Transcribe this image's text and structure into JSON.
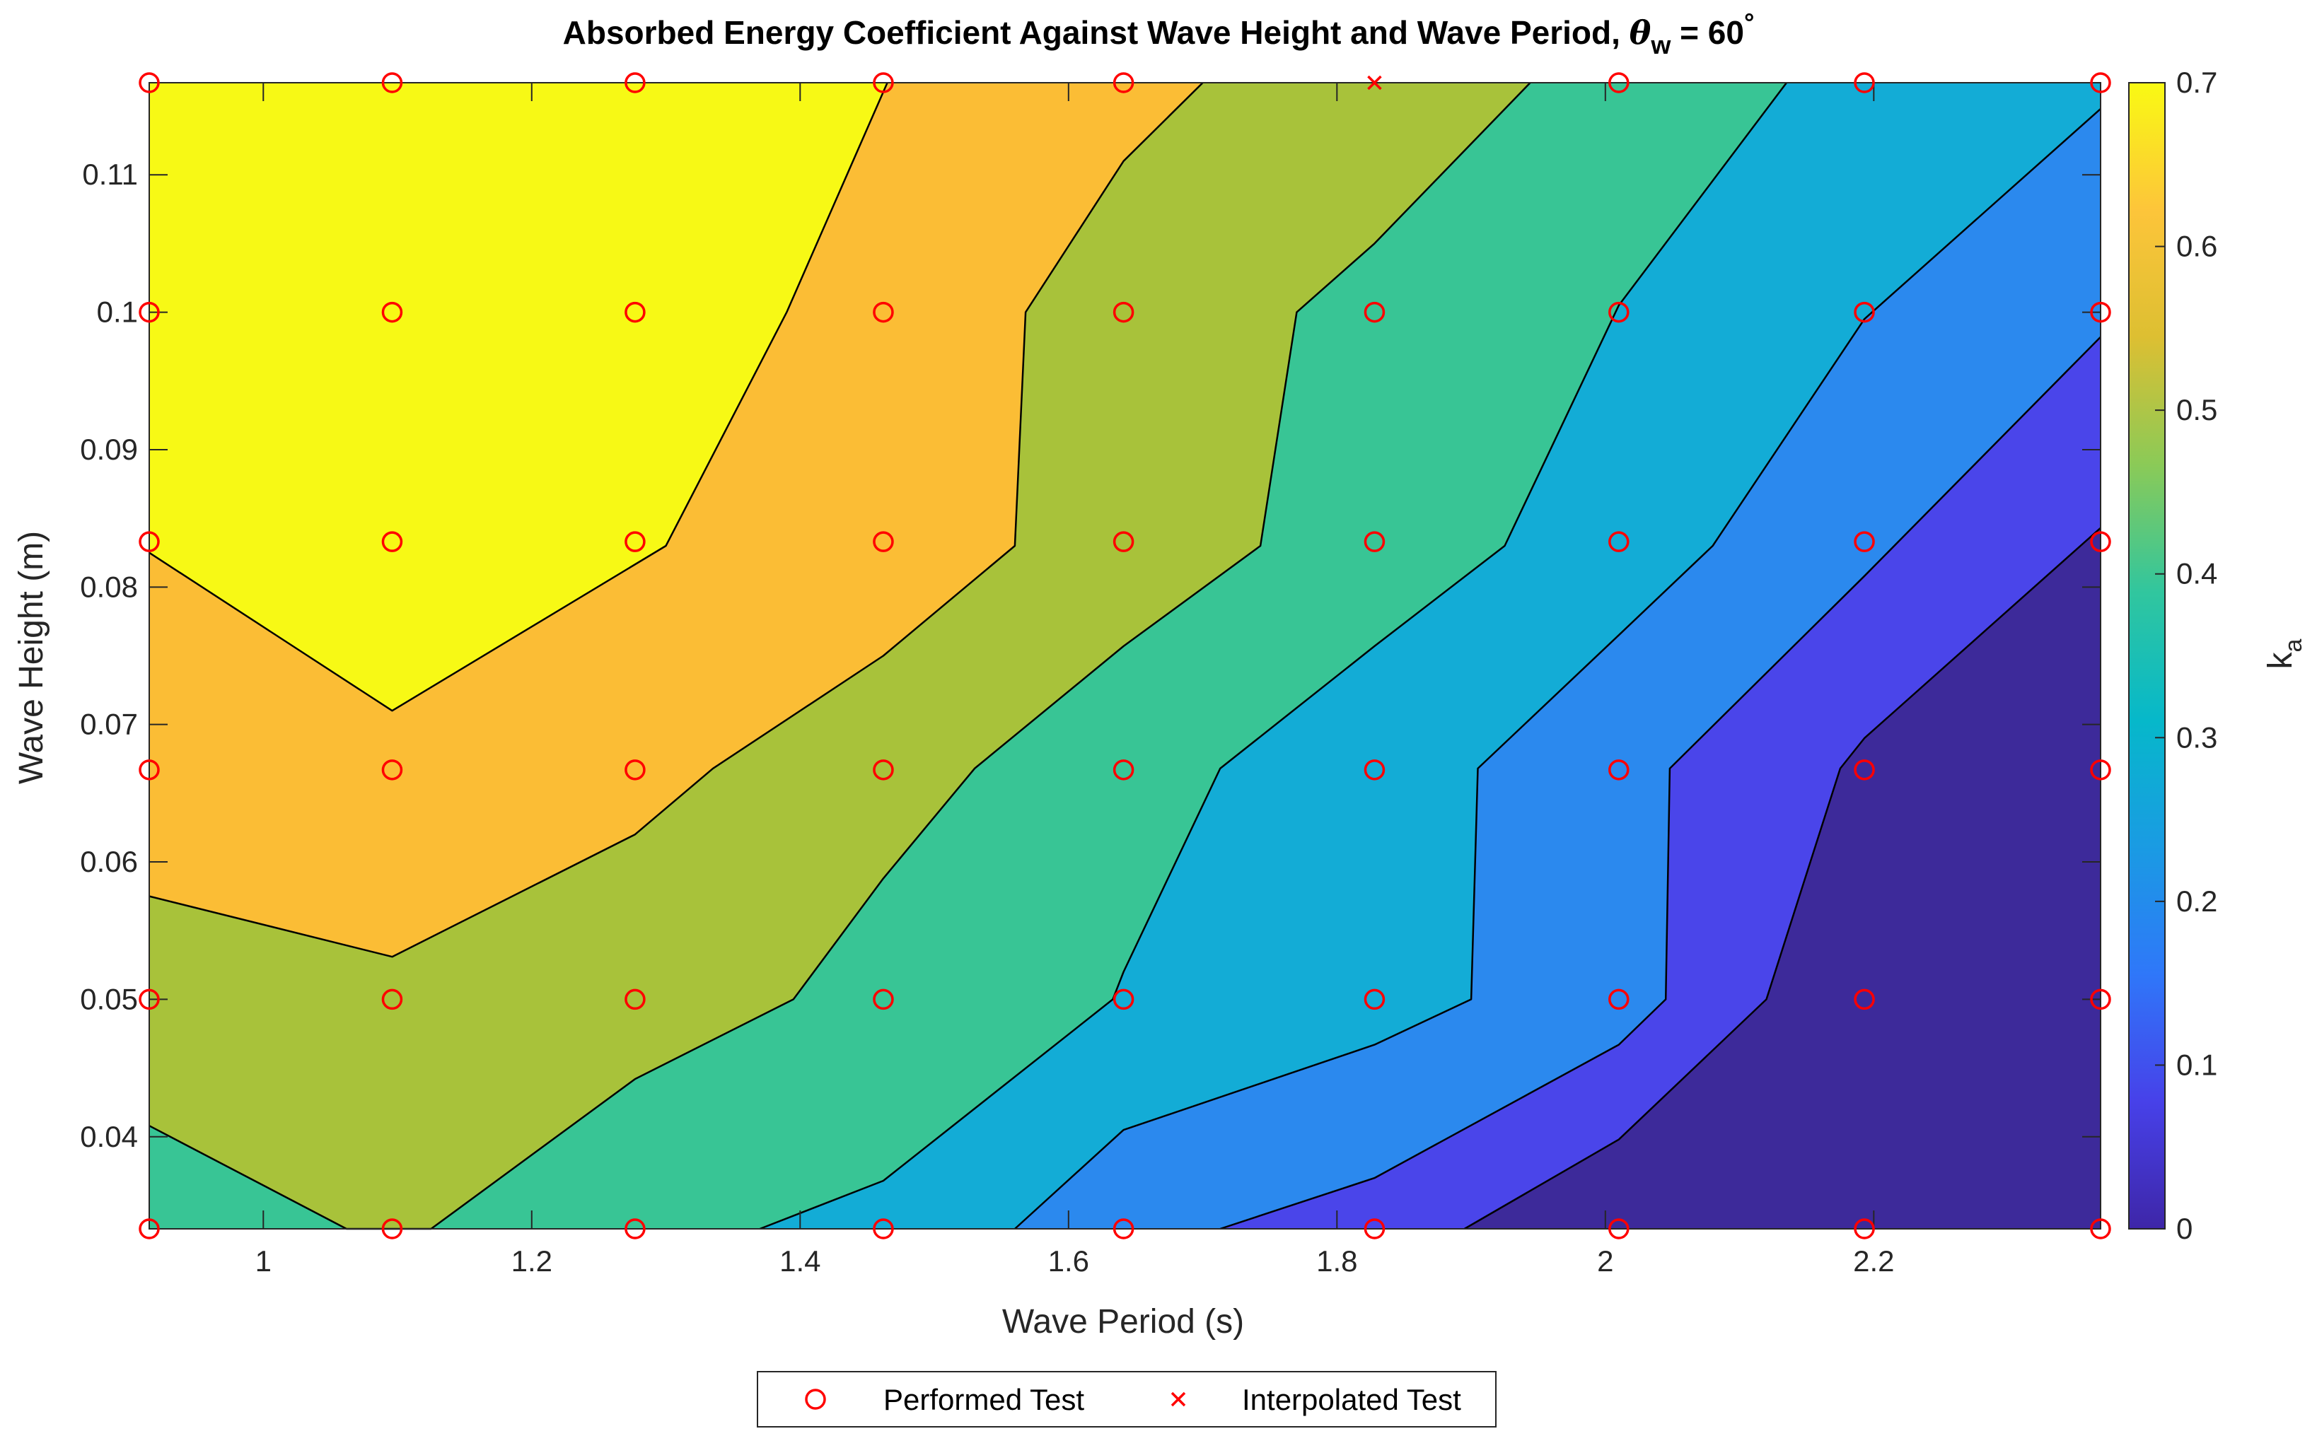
{
  "chart_data": {
    "type": "contour",
    "title": {
      "main": "Absorbed Energy Coefficient Against Wave Height and Wave Period, ",
      "theta": "θ",
      "theta_sub": "w",
      "rest": " = 60",
      "deg": "°"
    },
    "xlabel": "Wave Period (s)",
    "ylabel": "Wave Height (m)",
    "colorbar_label": "k",
    "colorbar_label_sub": "a",
    "xlim": [
      0.915,
      2.369
    ],
    "ylim": [
      0.0333,
      0.1167
    ],
    "x_ticks": [
      1,
      1.2,
      1.4,
      1.6,
      1.8,
      2,
      2.2
    ],
    "x_tick_labels": [
      "1",
      "1.2",
      "1.4",
      "1.6",
      "1.8",
      "2",
      "2.2"
    ],
    "y_ticks": [
      0.04,
      0.05,
      0.06,
      0.07,
      0.08,
      0.09,
      0.1,
      0.11
    ],
    "y_tick_labels": [
      "0.04",
      "0.05",
      "0.06",
      "0.07",
      "0.08",
      "0.09",
      "0.1",
      "0.11"
    ],
    "colorbar_ticks": [
      0,
      0.1,
      0.2,
      0.3,
      0.4,
      0.5,
      0.6,
      0.7
    ],
    "colorbar_tick_labels": [
      "0",
      "0.1",
      "0.2",
      "0.3",
      "0.4",
      "0.5",
      "0.6",
      "0.7"
    ],
    "clim": [
      0,
      0.7
    ],
    "contour_levels": [
      0.0,
      0.1,
      0.2,
      0.3,
      0.4,
      0.5,
      0.6,
      0.7
    ],
    "band_colors": [
      "#3d2a9a",
      "#4a45ea",
      "#2b89ee",
      "#13acd6",
      "#38c595",
      "#a8c23a",
      "#fbbd35",
      "#f7f915"
    ],
    "colormap": [
      "#3e26a8",
      "#4741e9",
      "#2f77f9",
      "#1a9be3",
      "#06b8ca",
      "#31c69e",
      "#8bca57",
      "#ddbf32",
      "#fdc53a",
      "#f9fa13"
    ],
    "grid": "off",
    "contour_lines": [
      {
        "level": 0.65,
        "points": [
          [
            0.915,
            0.0825
          ],
          [
            1.096,
            0.071
          ],
          [
            1.3,
            0.083
          ],
          [
            1.39,
            0.1
          ],
          [
            1.465,
            0.1167
          ]
        ]
      },
      {
        "level": 0.55,
        "points": [
          [
            0.915,
            0.0575
          ],
          [
            1.096,
            0.0531
          ],
          [
            1.277,
            0.062
          ],
          [
            1.335,
            0.0668
          ],
          [
            1.462,
            0.075
          ],
          [
            1.56,
            0.083
          ],
          [
            1.568,
            0.1
          ],
          [
            1.641,
            0.111
          ],
          [
            1.7,
            0.1167
          ]
        ]
      },
      {
        "level": 0.45,
        "points": [
          [
            0.915,
            0.0408
          ],
          [
            1.062,
            0.0333
          ],
          [
            1.096,
            0.0333
          ],
          [
            1.125,
            0.0333
          ],
          [
            1.277,
            0.0442
          ],
          [
            1.395,
            0.05
          ],
          [
            1.462,
            0.0588
          ],
          [
            1.53,
            0.0668
          ],
          [
            1.641,
            0.0757
          ],
          [
            1.743,
            0.083
          ],
          [
            1.77,
            0.1
          ],
          [
            1.828,
            0.105
          ],
          [
            1.944,
            0.1167
          ]
        ]
      },
      {
        "level": 0.35,
        "points": [
          [
            1.37,
            0.0333
          ],
          [
            1.462,
            0.0368
          ],
          [
            1.633,
            0.05
          ],
          [
            1.641,
            0.052
          ],
          [
            1.713,
            0.0668
          ],
          [
            1.828,
            0.0757
          ],
          [
            1.925,
            0.083
          ],
          [
            2.01,
            0.1005
          ],
          [
            2.135,
            0.1167
          ]
        ]
      },
      {
        "level": 0.25,
        "points": [
          [
            1.56,
            0.0333
          ],
          [
            1.641,
            0.0405
          ],
          [
            1.828,
            0.0467
          ],
          [
            1.9,
            0.05
          ],
          [
            1.905,
            0.0668
          ],
          [
            2.01,
            0.0765
          ],
          [
            2.08,
            0.083
          ],
          [
            2.193,
            0.0995
          ],
          [
            2.369,
            0.1148
          ]
        ]
      },
      {
        "level": 0.15,
        "points": [
          [
            1.713,
            0.0333
          ],
          [
            1.828,
            0.037
          ],
          [
            2.01,
            0.0467
          ],
          [
            2.045,
            0.05
          ],
          [
            2.048,
            0.0668
          ],
          [
            2.193,
            0.0808
          ],
          [
            2.369,
            0.0982
          ]
        ]
      },
      {
        "level": 0.05,
        "points": [
          [
            1.895,
            0.0333
          ],
          [
            2.01,
            0.0398
          ],
          [
            2.12,
            0.05
          ],
          [
            2.175,
            0.0668
          ],
          [
            2.193,
            0.069
          ],
          [
            2.369,
            0.0843
          ]
        ]
      }
    ],
    "performed_tests_x": [
      0.915,
      1.096,
      1.277,
      1.462,
      1.641,
      1.828,
      2.01,
      2.193,
      2.369
    ],
    "performed_tests_y": [
      0.0333,
      0.05,
      0.0667,
      0.0833,
      0.1,
      0.1167
    ],
    "interpolated_tests": [
      {
        "x": 1.828,
        "y": 0.1167
      }
    ],
    "legend": {
      "position": "bottom-center",
      "entries": [
        {
          "label": "Performed Test",
          "marker": "circle",
          "color": "#ff0000"
        },
        {
          "label": "Interpolated Test",
          "marker": "x",
          "color": "#ff0000"
        }
      ]
    }
  }
}
